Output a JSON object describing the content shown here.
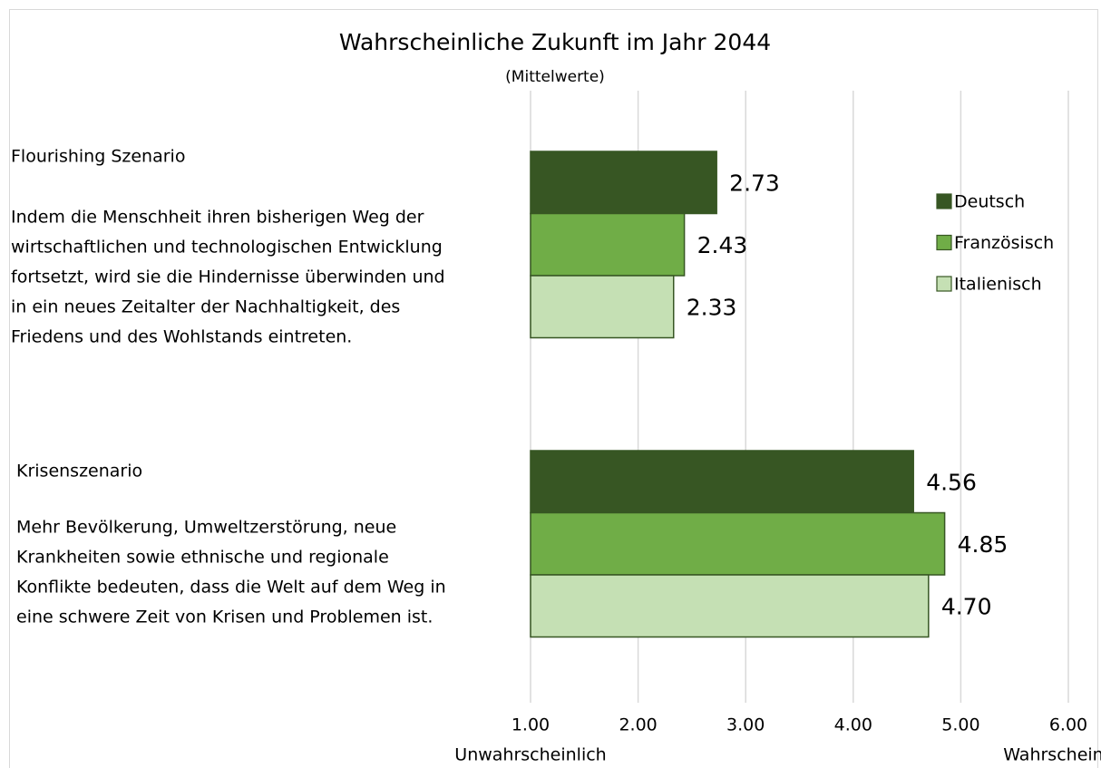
{
  "chart_data": {
    "type": "hbar",
    "title": "Wahrscheinliche Zukunft im Jahr 2044",
    "subtitle": "(Mittelwerte)",
    "categories": [
      "Flourishing Szenario",
      "Krisenszenario"
    ],
    "category_descriptions": [
      [
        "Indem die Menschheit ihren bisherigen Weg der",
        "wirtschaftlichen und technologischen Entwicklung",
        "fortsetzt, wird sie die Hindernisse überwinden und",
        "in ein neues Zeitalter der Nachhaltigkeit, des",
        "Friedens und des Wohlstands eintreten."
      ],
      [
        "Mehr Bevölkerung, Umweltzerstörung, neue",
        "Krankheiten sowie ethnische und regionale",
        "Konflikte bedeuten, dass die Welt auf dem Weg in",
        "eine schwere Zeit von Krisen und Problemen ist."
      ]
    ],
    "series": [
      {
        "name": "Deutsch",
        "color": "#375623",
        "values": [
          2.73,
          4.56
        ],
        "value_labels": [
          "2.73",
          "4.56"
        ]
      },
      {
        "name": "Französisch",
        "color": "#70ad47",
        "values": [
          2.43,
          4.85
        ],
        "value_labels": [
          "2.43",
          "4.85"
        ]
      },
      {
        "name": "Italienisch",
        "color": "#c5e0b4",
        "values": [
          2.33,
          4.7
        ],
        "value_labels": [
          "2.33",
          "4.70"
        ]
      }
    ],
    "xlim": [
      1,
      6
    ],
    "xticks": [
      {
        "value": 1,
        "label": "1.00"
      },
      {
        "value": 2,
        "label": "2.00"
      },
      {
        "value": 3,
        "label": "3.00"
      },
      {
        "value": 4,
        "label": "4.00"
      },
      {
        "value": 5,
        "label": "5.00"
      },
      {
        "value": 6,
        "label": "6.00"
      }
    ],
    "xlim_labels": [
      "Unwahrscheinlich",
      "Wahrscheinlich"
    ],
    "grid": true,
    "legend": "right"
  }
}
